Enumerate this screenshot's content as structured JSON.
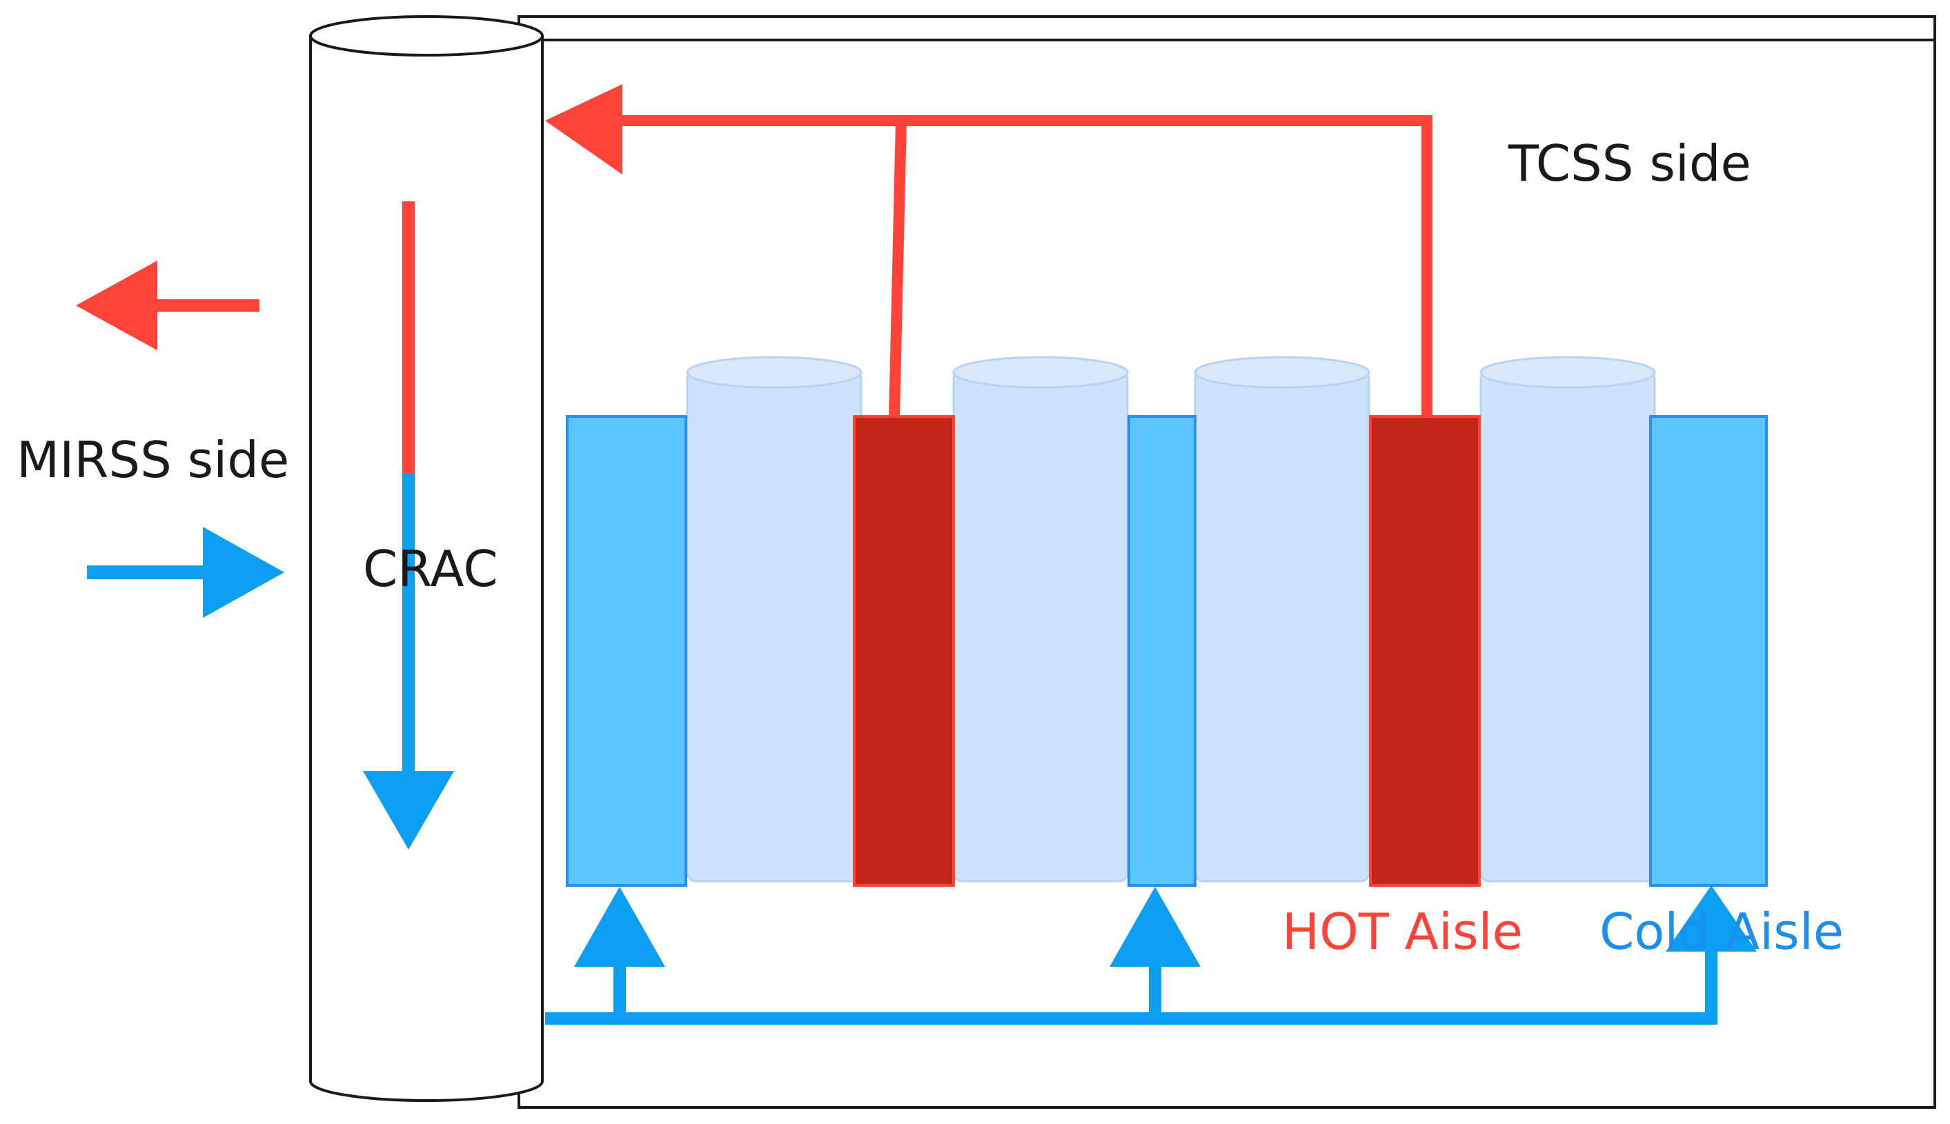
{
  "labels": {
    "tcss": "TCSS side",
    "mirss": "MIRSS side",
    "crac": "CRAC",
    "hot_aisle": "HOT Aisle",
    "cold_aisle": "Cold Aisle"
  },
  "colors": {
    "hot_flow": "#ff4338",
    "cold_flow": "#0a9ff0",
    "hot_aisle_fill": "#c02516",
    "cold_aisle_fill": "#5cc4ff",
    "rack_fill": "#cde3fb",
    "outline": "#1a1a1a"
  }
}
